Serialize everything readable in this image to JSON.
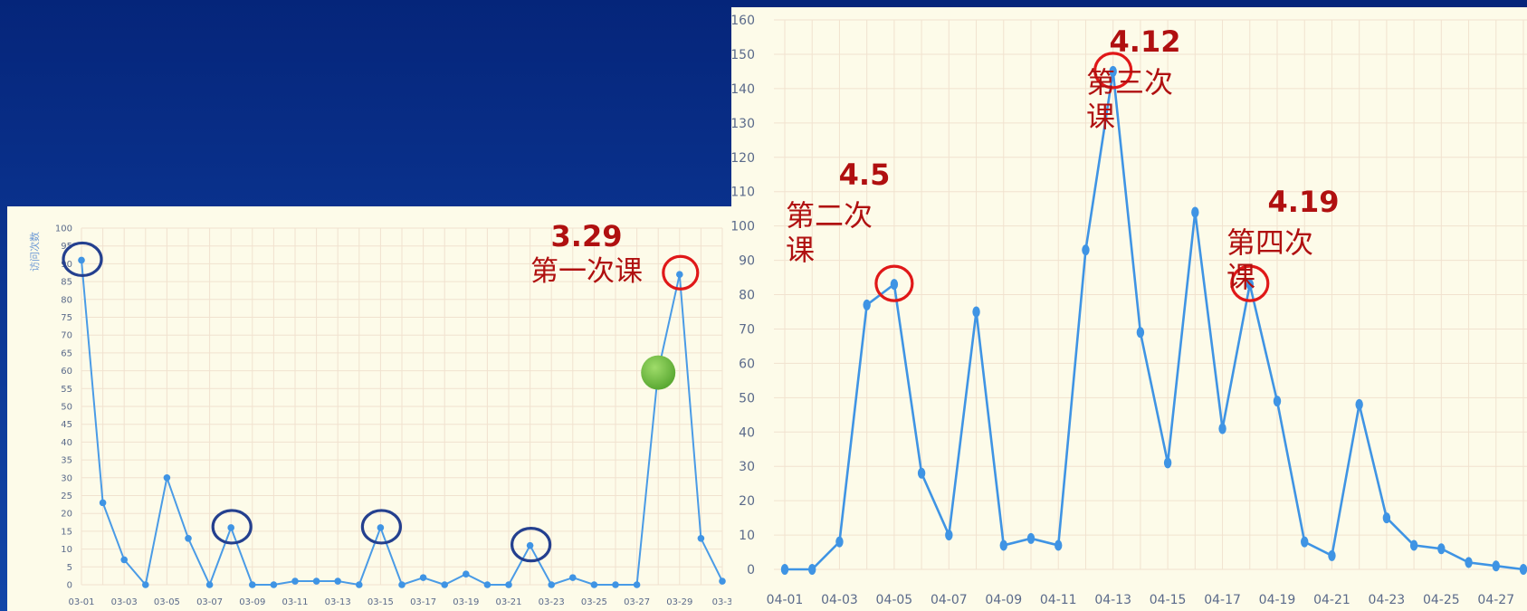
{
  "chart_data": [
    {
      "type": "line",
      "ylabel": "访问次数",
      "ylim": [
        0,
        100
      ],
      "y_ticks": [
        0,
        5,
        10,
        15,
        20,
        25,
        30,
        35,
        40,
        45,
        50,
        55,
        60,
        65,
        70,
        75,
        80,
        85,
        90,
        95,
        100
      ],
      "x": [
        "03-01",
        "03-02",
        "03-03",
        "03-04",
        "03-05",
        "03-06",
        "03-07",
        "03-08",
        "03-09",
        "03-10",
        "03-11",
        "03-12",
        "03-13",
        "03-14",
        "03-15",
        "03-16",
        "03-17",
        "03-18",
        "03-19",
        "03-20",
        "03-21",
        "03-22",
        "03-23",
        "03-24",
        "03-25",
        "03-26",
        "03-27",
        "03-28",
        "03-29",
        "03-30",
        "03-31"
      ],
      "x_tick_labels": [
        "03-01",
        "03-03",
        "03-05",
        "03-07",
        "03-09",
        "03-11",
        "03-13",
        "03-15",
        "03-17",
        "03-19",
        "03-21",
        "03-23",
        "03-25",
        "03-27",
        "03-29",
        "03-3"
      ],
      "values": [
        91,
        23,
        7,
        0,
        30,
        13,
        0,
        16,
        0,
        0,
        1,
        1,
        1,
        0,
        16,
        0,
        2,
        0,
        3,
        0,
        0,
        11,
        0,
        2,
        0,
        0,
        0,
        60,
        87,
        13,
        1
      ],
      "grid": true,
      "annotations": [
        {
          "date": "3.29",
          "text": "第一次课"
        }
      ],
      "colors": {
        "line": "#4a9be6",
        "ring_blue": "#24408f",
        "ring_red": "#e01818",
        "marker": "#5aa832"
      }
    },
    {
      "type": "line",
      "ylim": [
        0,
        160
      ],
      "y_ticks": [
        0,
        10,
        20,
        30,
        40,
        50,
        60,
        70,
        80,
        90,
        100,
        110,
        120,
        130,
        140,
        150,
        160
      ],
      "x": [
        "04-01",
        "04-02",
        "04-03",
        "04-04",
        "04-05",
        "04-06",
        "04-07",
        "04-08",
        "04-09",
        "04-10",
        "04-11",
        "04-12",
        "04-13",
        "04-14",
        "04-15",
        "04-16",
        "04-17",
        "04-18",
        "04-19",
        "04-20",
        "04-21",
        "04-22",
        "04-23",
        "04-24",
        "04-25",
        "04-26",
        "04-27",
        "04-28"
      ],
      "x_tick_labels": [
        "04-01",
        "04-03",
        "04-05",
        "04-07",
        "04-09",
        "04-11",
        "04-13",
        "04-15",
        "04-17",
        "04-19",
        "04-21",
        "04-23",
        "04-25",
        "04-27"
      ],
      "values": [
        0,
        0,
        8,
        77,
        83,
        28,
        10,
        75,
        7,
        9,
        7,
        93,
        145,
        69,
        31,
        104,
        41,
        83,
        49,
        8,
        4,
        48,
        15,
        7,
        6,
        2,
        1,
        0
      ],
      "grid": true,
      "annotations": [
        {
          "date": "4.5",
          "line1": "第二次",
          "line2": "课"
        },
        {
          "date": "4.12",
          "line1": "第三次",
          "line2": "课"
        },
        {
          "date": "4.19",
          "line1": "第四次",
          "line2": "课"
        }
      ],
      "colors": {
        "line": "#3f94e4",
        "ring_red": "#e01818"
      }
    }
  ]
}
